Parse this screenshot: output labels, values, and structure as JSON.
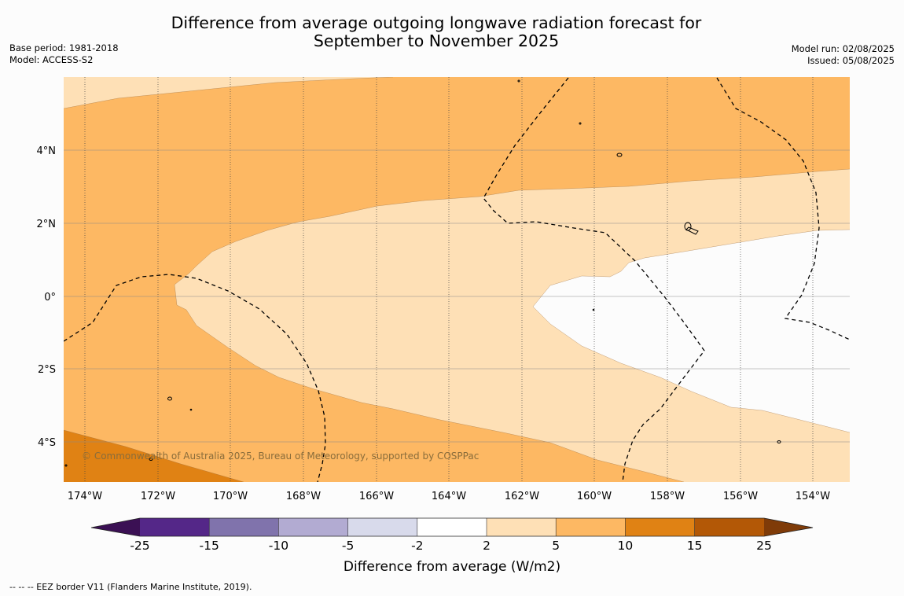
{
  "title_line1": "Difference from average outgoing longwave radiation forecast for",
  "title_line2": "September to November 2025",
  "info_left": {
    "base_period": "Base period: 1981-2018",
    "model": "Model: ACCESS-S2"
  },
  "info_right": {
    "model_run": "Model run: 02/08/2025",
    "issued": "Issued: 05/08/2025"
  },
  "copyright": "© Commonwealth of Australia 2025, Bureau of Meteorology, supported by COSPPac",
  "lat_ticks": [
    "4°N",
    "2°N",
    "0°",
    "2°S",
    "4°S"
  ],
  "lon_ticks": [
    "174°W",
    "172°W",
    "170°W",
    "168°W",
    "166°W",
    "164°W",
    "162°W",
    "160°W",
    "158°W",
    "156°W",
    "154°W"
  ],
  "colorbar": {
    "title": "Difference from average (W/m2)",
    "ticks": [
      "-25",
      "-15",
      "-10",
      "-5",
      "-2",
      "2",
      "5",
      "10",
      "15",
      "25"
    ],
    "low_extend_color": "#3b1054",
    "high_extend_color": "#7f3b08",
    "colors": [
      "#542788",
      "#8073ac",
      "#b2abd2",
      "#d8daeb",
      "#ffffff",
      "#fee0b6",
      "#fdb863",
      "#e08214",
      "#b35806"
    ]
  },
  "footnote": "--  --  -- EEZ border V11 (Flanders Marine Institute, 2019)."
}
